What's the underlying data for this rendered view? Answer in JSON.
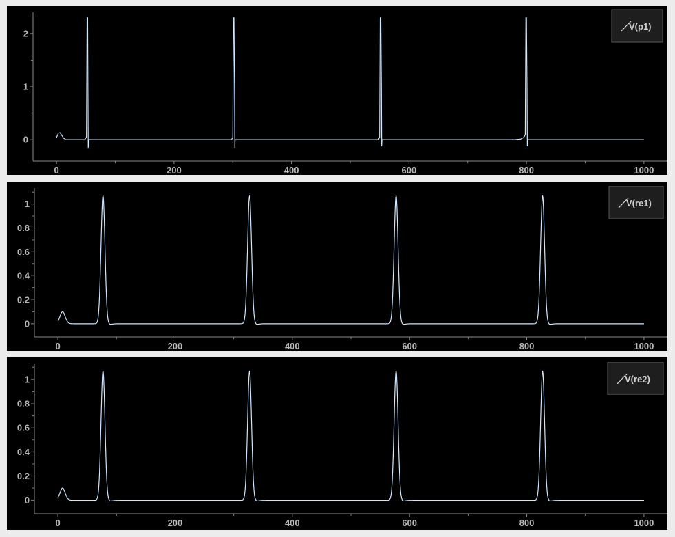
{
  "colors": {
    "background": "#000000",
    "trace": "#cfe6ff",
    "axis": "#8a8a8a",
    "tick_text": "#b9b9b9",
    "legend_bg": "#1e1e1e",
    "outer_bg": "#ececec"
  },
  "chart_data": [
    {
      "type": "line",
      "id": "p1",
      "xlim": [
        -40,
        1040
      ],
      "ylim": [
        -0.4,
        2.4
      ],
      "xticks": [
        0,
        200,
        400,
        600,
        800,
        1000
      ],
      "xtick_labels": [
        "0",
        "200",
        "400",
        "600",
        "800",
        "1000"
      ],
      "yticks": [
        0,
        1,
        2
      ],
      "ytick_labels": [
        "0",
        "1",
        "2"
      ],
      "legend": {
        "label": "V(p1)",
        "position": "top-right"
      },
      "series": [
        {
          "name": "V(p1)",
          "x": [
            0,
            3,
            6,
            9,
            12,
            16,
            22,
            30,
            48,
            51,
            51.5,
            52,
            53,
            53.5,
            54,
            55,
            60,
            100,
            200,
            298,
            300,
            300.5,
            301,
            302,
            303,
            303.5,
            304,
            310,
            400,
            548,
            550,
            550.5,
            551,
            552,
            553,
            553.5,
            554,
            560,
            700,
            780,
            790,
            795,
            797,
            798,
            798.5,
            799,
            800,
            801,
            801.5,
            802,
            810,
            900,
            1000
          ],
          "y": [
            0.04,
            0.12,
            0.13,
            0.08,
            0.03,
            0,
            0,
            0,
            0,
            0.05,
            1.2,
            2.3,
            2.3,
            1.0,
            -0.15,
            0,
            0,
            0,
            0,
            0,
            0.05,
            1.2,
            2.3,
            2.3,
            1.0,
            -0.15,
            0,
            0,
            0,
            0,
            0.05,
            1.2,
            2.3,
            2.3,
            1.0,
            -0.12,
            0,
            0,
            0,
            0,
            0.01,
            0.04,
            0.07,
            0.1,
            1.2,
            2.3,
            2.3,
            1.0,
            -0.12,
            0,
            0,
            0,
            0
          ]
        }
      ]
    },
    {
      "type": "line",
      "id": "re1",
      "xlim": [
        -40,
        1040
      ],
      "ylim": [
        -0.11,
        1.13
      ],
      "xticks": [
        0,
        200,
        400,
        600,
        800,
        1000
      ],
      "xtick_labels": [
        "0",
        "200",
        "400",
        "600",
        "800",
        "1000"
      ],
      "yticks": [
        0,
        0.2,
        0.4,
        0.6,
        0.8,
        1
      ],
      "ytick_labels": [
        "0",
        "0.2",
        "0.4",
        "0.6",
        "0.8",
        "1"
      ],
      "legend": {
        "label": "V(re1)",
        "position": "top-right"
      },
      "series": [
        {
          "name": "V(re1)",
          "pulses": [
            77,
            327,
            577,
            827
          ],
          "pulse_peak": 1.07,
          "bump": {
            "center": 8,
            "height": 0.1
          },
          "x_start": 0,
          "x_end": 1000
        }
      ]
    },
    {
      "type": "line",
      "id": "re2",
      "xlim": [
        -40,
        1040
      ],
      "ylim": [
        -0.11,
        1.13
      ],
      "xticks": [
        0,
        200,
        400,
        600,
        800,
        1000
      ],
      "xtick_labels": [
        "0",
        "200",
        "400",
        "600",
        "800",
        "1000"
      ],
      "yticks": [
        0,
        0.2,
        0.4,
        0.6,
        0.8,
        1
      ],
      "ytick_labels": [
        "0",
        "0.2",
        "0.4",
        "0.6",
        "0.8",
        "1"
      ],
      "legend": {
        "label": "V(re2)",
        "position": "top-right"
      },
      "series": [
        {
          "name": "V(re2)",
          "pulses": [
            77,
            327,
            577,
            827
          ],
          "pulse_peak": 1.07,
          "bump": {
            "center": 8,
            "height": 0.1
          },
          "x_start": 0,
          "x_end": 1000
        }
      ]
    }
  ]
}
